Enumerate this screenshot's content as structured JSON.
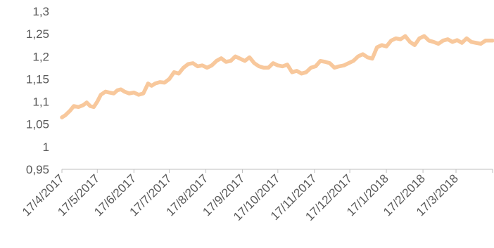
{
  "chart_data": {
    "type": "line",
    "title": "",
    "xlabel": "",
    "ylabel": "",
    "ylim": [
      0.95,
      1.3
    ],
    "grid": false,
    "legend": "none",
    "y_ticks": [
      "0,95",
      "1",
      "1,05",
      "1,1",
      "1,15",
      "1,2",
      "1,25",
      "1,3"
    ],
    "y_tick_values": [
      0.95,
      1.0,
      1.05,
      1.1,
      1.15,
      1.2,
      1.25,
      1.3
    ],
    "x_ticks": [
      "17/4/2017",
      "17/5/2017",
      "17/6/2017",
      "17/7/2017",
      "17/8/2017",
      "17/9/2017",
      "17/10/2017",
      "17/11/2017",
      "17/12/2017",
      "17/1/2018",
      "17/2/2018",
      "17/3/2018"
    ],
    "xlim": [
      "2017-04-17",
      "2018-04-17"
    ],
    "series": [
      {
        "color": "#f8c89c",
        "x": [
          "2017-04-17",
          "2017-04-20",
          "2017-04-24",
          "2017-04-27",
          "2017-05-01",
          "2017-05-05",
          "2017-05-08",
          "2017-05-11",
          "2017-05-14",
          "2017-05-17",
          "2017-05-20",
          "2017-05-24",
          "2017-05-27",
          "2017-05-31",
          "2017-06-03",
          "2017-06-06",
          "2017-06-09",
          "2017-06-13",
          "2017-06-17",
          "2017-06-21",
          "2017-06-25",
          "2017-06-29",
          "2017-07-02",
          "2017-07-05",
          "2017-07-09",
          "2017-07-13",
          "2017-07-17",
          "2017-07-21",
          "2017-07-25",
          "2017-07-29",
          "2017-08-02",
          "2017-08-06",
          "2017-08-10",
          "2017-08-14",
          "2017-08-18",
          "2017-08-22",
          "2017-08-26",
          "2017-08-30",
          "2017-09-03",
          "2017-09-07",
          "2017-09-11",
          "2017-09-15",
          "2017-09-19",
          "2017-09-23",
          "2017-09-27",
          "2017-10-01",
          "2017-10-05",
          "2017-10-09",
          "2017-10-13",
          "2017-10-17",
          "2017-10-21",
          "2017-10-25",
          "2017-10-29",
          "2017-11-02",
          "2017-11-06",
          "2017-11-10",
          "2017-11-14",
          "2017-11-18",
          "2017-11-22",
          "2017-11-26",
          "2017-11-30",
          "2017-12-04",
          "2017-12-08",
          "2017-12-12",
          "2017-12-16",
          "2017-12-20",
          "2017-12-24",
          "2017-12-28",
          "2018-01-01",
          "2018-01-05",
          "2018-01-09",
          "2018-01-13",
          "2018-01-17",
          "2018-01-21",
          "2018-01-25",
          "2018-01-29",
          "2018-02-02",
          "2018-02-06",
          "2018-02-10",
          "2018-02-14",
          "2018-02-18",
          "2018-02-22",
          "2018-02-26",
          "2018-03-02",
          "2018-03-06",
          "2018-03-10",
          "2018-03-14",
          "2018-03-18",
          "2018-03-22",
          "2018-03-26",
          "2018-03-30",
          "2018-04-03",
          "2018-04-07",
          "2018-04-11",
          "2018-04-17"
        ],
        "values": [
          1.065,
          1.07,
          1.08,
          1.09,
          1.088,
          1.092,
          1.098,
          1.09,
          1.088,
          1.1,
          1.115,
          1.122,
          1.12,
          1.118,
          1.125,
          1.127,
          1.122,
          1.118,
          1.12,
          1.115,
          1.118,
          1.14,
          1.135,
          1.14,
          1.143,
          1.142,
          1.15,
          1.165,
          1.162,
          1.175,
          1.183,
          1.185,
          1.178,
          1.18,
          1.175,
          1.18,
          1.19,
          1.196,
          1.188,
          1.19,
          1.2,
          1.195,
          1.19,
          1.198,
          1.185,
          1.178,
          1.175,
          1.175,
          1.185,
          1.18,
          1.178,
          1.182,
          1.165,
          1.168,
          1.162,
          1.165,
          1.175,
          1.178,
          1.19,
          1.188,
          1.185,
          1.175,
          1.178,
          1.18,
          1.185,
          1.19,
          1.2,
          1.205,
          1.198,
          1.195,
          1.22,
          1.225,
          1.222,
          1.235,
          1.24,
          1.238,
          1.245,
          1.232,
          1.225,
          1.24,
          1.245,
          1.235,
          1.232,
          1.228,
          1.235,
          1.238,
          1.232,
          1.236,
          1.23,
          1.24,
          1.232,
          1.23,
          1.228,
          1.235,
          1.235
        ]
      }
    ]
  }
}
